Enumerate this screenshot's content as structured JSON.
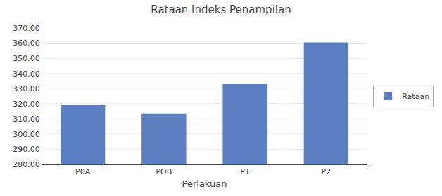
{
  "chart_data": {
    "type": "bar",
    "title": "Rataan Indeks Penampilan",
    "xlabel": "Perlakuan",
    "categories": [
      "P0A",
      "POB",
      "P1",
      "P2"
    ],
    "series": [
      {
        "name": "Rataan",
        "color": "#5B7FC0",
        "values": [
          319.0,
          313.5,
          333.0,
          360.5
        ]
      }
    ],
    "ylim": [
      280,
      370
    ],
    "yticks": [
      {
        "value": 280,
        "label": "280.00"
      },
      {
        "value": 290,
        "label": "290.00"
      },
      {
        "value": 300,
        "label": "300.00"
      },
      {
        "value": 310,
        "label": "310.00"
      },
      {
        "value": 320,
        "label": "320.00"
      },
      {
        "value": 330,
        "label": "330.00"
      },
      {
        "value": 340,
        "label": "340.00"
      },
      {
        "value": 350,
        "label": "350.00"
      },
      {
        "value": 360,
        "label": "360.00"
      },
      {
        "value": 370,
        "label": "370.00"
      }
    ],
    "grid": true,
    "legend": "right"
  }
}
